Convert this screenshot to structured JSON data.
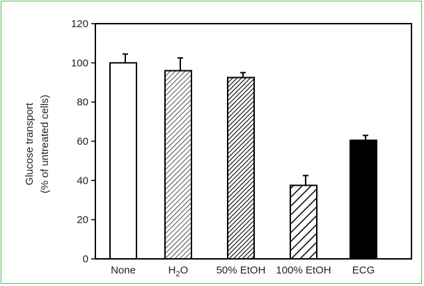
{
  "chart_data": {
    "type": "bar",
    "ylabel_lines": [
      "Glucose transport",
      "(% of untreated cells)"
    ],
    "ylim": [
      0,
      120
    ],
    "yticks": [
      0,
      20,
      40,
      60,
      80,
      100,
      120
    ],
    "categories": [
      {
        "main": "None",
        "sub": "",
        "rest": ""
      },
      {
        "main": "H",
        "sub": "2",
        "rest": "O"
      },
      {
        "main": "50% EtOH",
        "sub": "",
        "rest": ""
      },
      {
        "main": "100% EtOH",
        "sub": "",
        "rest": ""
      },
      {
        "main": "ECG",
        "sub": "",
        "rest": ""
      }
    ],
    "values": [
      100,
      96,
      92.5,
      37.5,
      60.5
    ],
    "errors": [
      4.5,
      6.5,
      2.5,
      5,
      2.5
    ],
    "fills": [
      "open",
      "fine-hatch",
      "dense-hatch",
      "wide-hatch",
      "solid"
    ],
    "grid": false
  },
  "colors": {
    "frame": "#5bb85b",
    "ink": "#000000"
  }
}
